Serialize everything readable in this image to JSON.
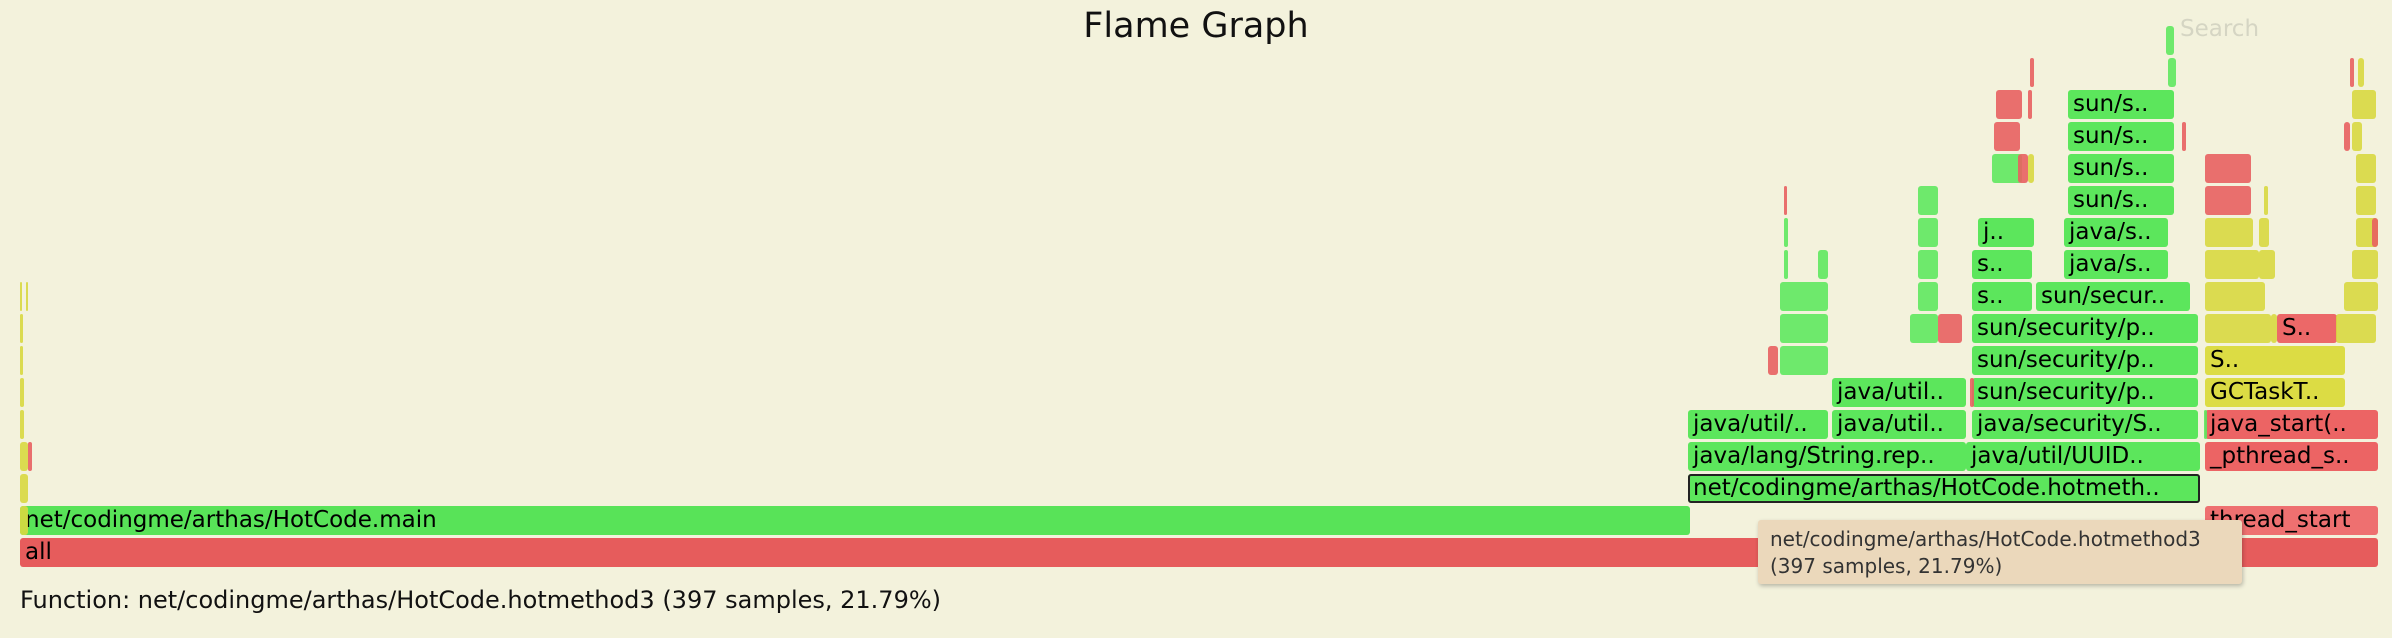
{
  "title": "Flame Graph",
  "search_label": "Search",
  "details": "Function: net/codingme/arthas/HotCode.hotmethod3 (397 samples, 21.79%)",
  "tooltip": {
    "name": "net/codingme/arthas/HotCode.hotmethod3",
    "info": "(397 samples, 21.79%)"
  },
  "colors": {
    "green": "#5fe85f",
    "red": "#e86060",
    "yellow": "#d8d840",
    "background": "#f3f2dc"
  },
  "frames": [
    {
      "label": "all",
      "color": "#e65c5c"
    },
    {
      "label": "net/codingme/arthas/HotCode.main",
      "color": "#58e358"
    },
    {
      "label": "thread_start",
      "color": "#ee7070"
    },
    {
      "label": "net/codingme/arthas/HotCode.hotmeth..",
      "color": "#5ce65c",
      "selected": true
    },
    {
      "label": "_pthread_s..",
      "color": "#ec6464"
    },
    {
      "label": "java/lang/String.rep..",
      "color": "#5ce65c"
    },
    {
      "label": "java/util/UUID..",
      "color": "#5ce65c"
    },
    {
      "label": "java_start(..",
      "color": "#ec6464"
    },
    {
      "label": "java/util/..",
      "color": "#5ce65c"
    },
    {
      "label": "java/util..",
      "color": "#5ce65c"
    },
    {
      "label": "java/security/S..",
      "color": "#5ce65c"
    },
    {
      "label": "GCTaskT..",
      "color": "#dcdc44"
    },
    {
      "label": "java/util..",
      "color": "#5ce65c"
    },
    {
      "label": "sun/security/p..",
      "color": "#5ce65c"
    },
    {
      "label": "S..",
      "color": "#dcdc44"
    },
    {
      "label": "sun/security/p..",
      "color": "#5ce65c"
    },
    {
      "label": "S..",
      "color": "#ec6868"
    },
    {
      "label": "sun/security/p..",
      "color": "#5ce65c"
    },
    {
      "label": "s..",
      "color": "#5ce65c"
    },
    {
      "label": "sun/secur..",
      "color": "#5ce65c"
    },
    {
      "label": "s..",
      "color": "#5ce65c"
    },
    {
      "label": "java/s..",
      "color": "#5ce65c"
    },
    {
      "label": "j..",
      "color": "#5ce65c"
    },
    {
      "label": "java/s..",
      "color": "#5ce65c"
    },
    {
      "label": "sun/s..",
      "color": "#5ce65c"
    },
    {
      "label": "sun/s..",
      "color": "#5ce65c"
    },
    {
      "label": "sun/s..",
      "color": "#5ce65c"
    },
    {
      "label": "sun/s..",
      "color": "#5ce65c"
    }
  ]
}
